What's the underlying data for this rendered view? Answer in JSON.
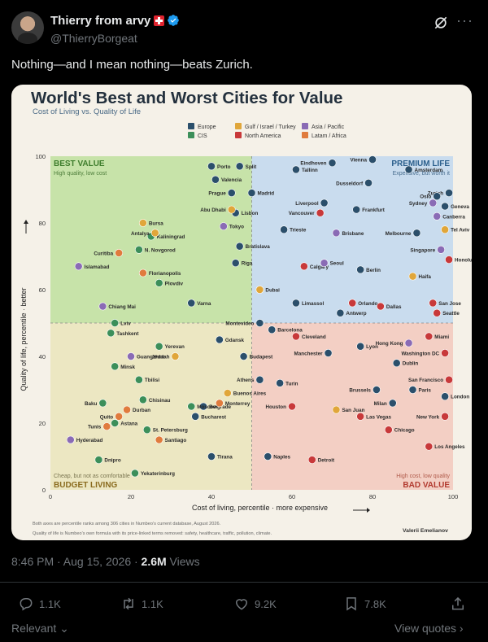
{
  "post": {
    "author_name": "Thierry from arvy",
    "handle": "@ThierryBorgeat",
    "text": "Nothing—and I mean nothing—beats Zurich.",
    "timestamp": "8:46 PM · Aug 15, 2026 · ",
    "views_count": "2.6M",
    "views_label": " Views",
    "replies": "1.1K",
    "reposts": "1.1K",
    "likes": "9.2K",
    "bookmarks": "7.8K",
    "relevant_label": "Relevant",
    "view_quotes_label": "View quotes"
  },
  "card": {
    "title": "World's Best and Worst Cities for Value",
    "subtitle": "Cost of Living vs. Quality of Life",
    "footnote1": "Both axes are percentile ranks among 306 cities in Numbeo's current database, August 2026.",
    "footnote2": "Quality of life is Numbeo's own formula with its price-linked terms removed: safety, healthcare, traffic, pollution, climate.",
    "credit": "Valerii Emelianov"
  },
  "chart_data": {
    "type": "scatter",
    "title": "World's Best and Worst Cities for Value",
    "subtitle": "Cost of Living vs. Quality of Life",
    "xlabel": "Cost of living, percentile  ·  more expensive",
    "ylabel": "Quality of life, percentile  ·  better",
    "xlim": [
      0,
      100
    ],
    "ylim": [
      0,
      100
    ],
    "xticks": [
      0,
      20,
      40,
      60,
      80,
      100
    ],
    "yticks": [
      0,
      20,
      40,
      60,
      80,
      100
    ],
    "grid": false,
    "divider": 50,
    "legend_position": "top-center",
    "legend": [
      {
        "name": "Europe",
        "color": "#2b4f6b"
      },
      {
        "name": "CIS",
        "color": "#3c8f5a"
      },
      {
        "name": "Gulf / Israel / Turkey",
        "color": "#e0a63a"
      },
      {
        "name": "North America",
        "color": "#c8393a"
      },
      {
        "name": "Asia / Pacific",
        "color": "#8a6bb5"
      },
      {
        "name": "Latam / Africa",
        "color": "#e07b3d"
      }
    ],
    "quadrants": [
      {
        "title": "BEST VALUE",
        "desc": "High quality, low cost",
        "color": "#c7e3a9"
      },
      {
        "title": "PREMIUM LIFE",
        "desc": "Expensive, but worth it",
        "color": "#c9dcee"
      },
      {
        "title": "BUDGET LIVING",
        "desc": "Cheap, but not as comfortable",
        "color": "#ece7c2"
      },
      {
        "title": "BAD VALUE",
        "desc": "High cost, low quality",
        "color": "#f3cfc4"
      }
    ],
    "series": [
      {
        "name": "Europe",
        "color": "#2b4f6b",
        "points": [
          {
            "label": "Porto",
            "x": 40,
            "y": 97
          },
          {
            "label": "Split",
            "x": 47,
            "y": 97
          },
          {
            "label": "Valencia",
            "x": 41,
            "y": 93
          },
          {
            "label": "Prague",
            "x": 45,
            "y": 89
          },
          {
            "label": "Madrid",
            "x": 50,
            "y": 89
          },
          {
            "label": "Lisbon",
            "x": 46,
            "y": 83
          },
          {
            "label": "Bratislava",
            "x": 47,
            "y": 73
          },
          {
            "label": "Riga",
            "x": 46,
            "y": 68
          },
          {
            "label": "Varna",
            "x": 35,
            "y": 56
          },
          {
            "label": "Eindhoven",
            "x": 70,
            "y": 98
          },
          {
            "label": "Vienna",
            "x": 80,
            "y": 99
          },
          {
            "label": "Tallinn",
            "x": 61,
            "y": 96
          },
          {
            "label": "Amsterdam",
            "x": 89,
            "y": 96
          },
          {
            "label": "Dusseldorf",
            "x": 79,
            "y": 92
          },
          {
            "label": "Zurich",
            "x": 99,
            "y": 89
          },
          {
            "label": "Oslo",
            "x": 96,
            "y": 88
          },
          {
            "label": "Geneva",
            "x": 98,
            "y": 85
          },
          {
            "label": "Liverpool",
            "x": 68,
            "y": 86
          },
          {
            "label": "Frankfurt",
            "x": 76,
            "y": 84
          },
          {
            "label": "Trieste",
            "x": 58,
            "y": 78
          },
          {
            "label": "Melbourne",
            "x": 91,
            "y": 77
          },
          {
            "label": "Berlin",
            "x": 77,
            "y": 66
          },
          {
            "label": "Limassol",
            "x": 61,
            "y": 56
          },
          {
            "label": "Antwerp",
            "x": 72,
            "y": 53
          },
          {
            "label": "Montevideo",
            "x": 52,
            "y": 50
          },
          {
            "label": "Barcelona",
            "x": 55,
            "y": 48
          },
          {
            "label": "Gdansk",
            "x": 42,
            "y": 45
          },
          {
            "label": "Manchester",
            "x": 69,
            "y": 41
          },
          {
            "label": "Lyon",
            "x": 77,
            "y": 43
          },
          {
            "label": "Budapest",
            "x": 48,
            "y": 40
          },
          {
            "label": "Dublin",
            "x": 86,
            "y": 38
          },
          {
            "label": "Athens",
            "x": 52,
            "y": 33
          },
          {
            "label": "Turin",
            "x": 57,
            "y": 32
          },
          {
            "label": "Brussels",
            "x": 81,
            "y": 30
          },
          {
            "label": "Paris",
            "x": 90,
            "y": 30
          },
          {
            "label": "London",
            "x": 98,
            "y": 28
          },
          {
            "label": "Milan",
            "x": 85,
            "y": 26
          },
          {
            "label": "Belgrade",
            "x": 38,
            "y": 25
          },
          {
            "label": "Bucharest",
            "x": 36,
            "y": 22
          },
          {
            "label": "Tirana",
            "x": 40,
            "y": 10
          },
          {
            "label": "Naples",
            "x": 54,
            "y": 10
          }
        ]
      },
      {
        "name": "CIS",
        "color": "#3c8f5a",
        "points": [
          {
            "label": "Kaliningrad",
            "x": 25,
            "y": 76
          },
          {
            "label": "N. Novgorod",
            "x": 22,
            "y": 72
          },
          {
            "label": "Plovdiv",
            "x": 27,
            "y": 62
          },
          {
            "label": "Lviv",
            "x": 16,
            "y": 50
          },
          {
            "label": "Tashkent",
            "x": 15,
            "y": 47
          },
          {
            "label": "Yerevan",
            "x": 27,
            "y": 43
          },
          {
            "label": "Minsk",
            "x": 16,
            "y": 37
          },
          {
            "label": "Tbilisi",
            "x": 22,
            "y": 33
          },
          {
            "label": "Chisinau",
            "x": 23,
            "y": 27
          },
          {
            "label": "Baku",
            "x": 13,
            "y": 26
          },
          {
            "label": "Moscow",
            "x": 35,
            "y": 25
          },
          {
            "label": "Astana",
            "x": 16,
            "y": 20
          },
          {
            "label": "St. Petersburg",
            "x": 24,
            "y": 18
          },
          {
            "label": "Dnipro",
            "x": 12,
            "y": 9
          },
          {
            "label": "Yekaterinburg",
            "x": 21,
            "y": 5
          }
        ]
      },
      {
        "name": "Gulf / Israel / Turkey",
        "color": "#e0a63a",
        "points": [
          {
            "label": "Bursa",
            "x": 23,
            "y": 80
          },
          {
            "label": "Antalya",
            "x": 26,
            "y": 77
          },
          {
            "label": "Abu Dhabi",
            "x": 45,
            "y": 84
          },
          {
            "label": "Tel Aviv",
            "x": 98,
            "y": 78
          },
          {
            "label": "Dubai",
            "x": 52,
            "y": 60
          },
          {
            "label": "Haifa",
            "x": 90,
            "y": 64
          },
          {
            "label": "Jeddah",
            "x": 31,
            "y": 40
          },
          {
            "label": "Buenos Aires",
            "x": 44,
            "y": 29
          },
          {
            "label": "San Juan",
            "x": 71,
            "y": 24
          }
        ]
      },
      {
        "name": "North America",
        "color": "#c8393a",
        "points": [
          {
            "label": "Vancouver",
            "x": 67,
            "y": 83
          },
          {
            "label": "Honolulu",
            "x": 99,
            "y": 69
          },
          {
            "label": "Calgary",
            "x": 63,
            "y": 67
          },
          {
            "label": "Orlando",
            "x": 75,
            "y": 56
          },
          {
            "label": "Dallas",
            "x": 82,
            "y": 55
          },
          {
            "label": "San Jose",
            "x": 95,
            "y": 56
          },
          {
            "label": "Seattle",
            "x": 96,
            "y": 53
          },
          {
            "label": "Cleveland",
            "x": 61,
            "y": 46
          },
          {
            "label": "Miami",
            "x": 94,
            "y": 46
          },
          {
            "label": "Washington DC",
            "x": 98,
            "y": 41
          },
          {
            "label": "San Francisco",
            "x": 99,
            "y": 33
          },
          {
            "label": "Houston",
            "x": 60,
            "y": 25
          },
          {
            "label": "New York",
            "x": 98,
            "y": 22
          },
          {
            "label": "Las Vegas",
            "x": 77,
            "y": 22
          },
          {
            "label": "Chicago",
            "x": 84,
            "y": 18
          },
          {
            "label": "Los Angeles",
            "x": 94,
            "y": 13
          },
          {
            "label": "Detroit",
            "x": 65,
            "y": 9
          }
        ]
      },
      {
        "name": "Asia / Pacific",
        "color": "#8a6bb5",
        "points": [
          {
            "label": "Islamabad",
            "x": 7,
            "y": 67
          },
          {
            "label": "Tokyo",
            "x": 43,
            "y": 79
          },
          {
            "label": "Sydney",
            "x": 95,
            "y": 86
          },
          {
            "label": "Canberra",
            "x": 96,
            "y": 82
          },
          {
            "label": "Brisbane",
            "x": 71,
            "y": 77
          },
          {
            "label": "Seoul",
            "x": 68,
            "y": 68
          },
          {
            "label": "Singapore",
            "x": 97,
            "y": 72
          },
          {
            "label": "Chiang Mai",
            "x": 13,
            "y": 55
          },
          {
            "label": "Hong Kong",
            "x": 89,
            "y": 44
          },
          {
            "label": "Guangzhou",
            "x": 20,
            "y": 40
          },
          {
            "label": "Hyderabad",
            "x": 5,
            "y": 15
          }
        ]
      },
      {
        "name": "Latam / Africa",
        "color": "#e07b3d",
        "points": [
          {
            "label": "Curitiba",
            "x": 17,
            "y": 71
          },
          {
            "label": "Florianopolis",
            "x": 23,
            "y": 65
          },
          {
            "label": "Monterrey",
            "x": 42,
            "y": 26
          },
          {
            "label": "Durban",
            "x": 19,
            "y": 24
          },
          {
            "label": "Quito",
            "x": 17,
            "y": 22
          },
          {
            "label": "Tunis",
            "x": 14,
            "y": 19
          },
          {
            "label": "Santiago",
            "x": 27,
            "y": 15
          }
        ]
      }
    ]
  },
  "colors": {
    "background": "#000000",
    "text_primary": "#e7e9ea",
    "text_secondary": "#71767b",
    "verified": "#1d9bf0",
    "card_bg": "#f5f1e8"
  },
  "icons": [
    "verified-badge-icon",
    "grok-icon",
    "more-icon",
    "reply-icon",
    "repost-icon",
    "like-icon",
    "bookmark-icon",
    "share-icon",
    "chevron-down-icon",
    "chevron-right-icon"
  ]
}
